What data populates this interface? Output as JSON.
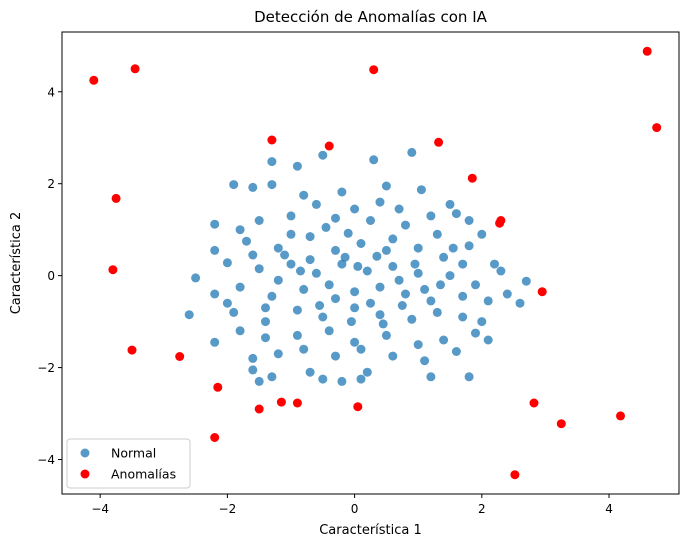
{
  "chart_data": {
    "type": "scatter",
    "title": "Detección de Anomalías con IA",
    "xlabel": "Característica 1",
    "ylabel": "Característica 2",
    "xlim": [
      -4.6,
      5.1
    ],
    "ylim": [
      -4.75,
      5.3
    ],
    "xticks": [
      -4,
      -2,
      0,
      2,
      4
    ],
    "yticks": [
      -4,
      -2,
      0,
      2,
      4
    ],
    "xtick_labels": [
      "−4",
      "−2",
      "0",
      "2",
      "4"
    ],
    "ytick_labels": [
      "−4",
      "−2",
      "0",
      "2",
      "4"
    ],
    "grid": false,
    "legend": {
      "position": "bottom-left"
    },
    "series": [
      {
        "name": "Normal",
        "color": "#1f77b4",
        "opacity": 0.75,
        "points": [
          [
            -1.3,
            2.48
          ],
          [
            -0.5,
            2.62
          ],
          [
            0.3,
            2.52
          ],
          [
            0.9,
            2.68
          ],
          [
            -0.9,
            2.38
          ],
          [
            -1.9,
            1.98
          ],
          [
            -1.6,
            1.92
          ],
          [
            -1.3,
            1.98
          ],
          [
            -0.8,
            1.75
          ],
          [
            -0.2,
            1.82
          ],
          [
            0.5,
            1.95
          ],
          [
            1.05,
            1.87
          ],
          [
            1.5,
            1.55
          ],
          [
            1.6,
            1.35
          ],
          [
            -2.2,
            1.12
          ],
          [
            -1.8,
            1.0
          ],
          [
            -1.5,
            1.2
          ],
          [
            -1.0,
            1.3
          ],
          [
            -0.6,
            1.55
          ],
          [
            0.0,
            1.45
          ],
          [
            0.4,
            1.6
          ],
          [
            0.7,
            1.45
          ],
          [
            1.2,
            1.3
          ],
          [
            1.8,
            1.2
          ],
          [
            2.0,
            0.9
          ],
          [
            -2.2,
            0.55
          ],
          [
            -1.7,
            0.75
          ],
          [
            -1.2,
            0.6
          ],
          [
            -0.7,
            0.85
          ],
          [
            -0.3,
            0.55
          ],
          [
            0.1,
            0.7
          ],
          [
            0.6,
            0.8
          ],
          [
            1.0,
            0.6
          ],
          [
            1.4,
            0.4
          ],
          [
            1.8,
            0.65
          ],
          [
            2.2,
            0.25
          ],
          [
            2.7,
            -0.12
          ],
          [
            -2.5,
            -0.05
          ],
          [
            -2.0,
            0.28
          ],
          [
            -1.5,
            0.15
          ],
          [
            -1.0,
            0.25
          ],
          [
            -0.6,
            0.05
          ],
          [
            -0.2,
            0.25
          ],
          [
            0.2,
            0.1
          ],
          [
            0.6,
            0.2
          ],
          [
            1.0,
            0.05
          ],
          [
            1.5,
            0.0
          ],
          [
            1.9,
            -0.2
          ],
          [
            2.4,
            -0.4
          ],
          [
            -2.2,
            -0.4
          ],
          [
            -1.8,
            -0.25
          ],
          [
            -1.3,
            -0.45
          ],
          [
            -0.8,
            -0.3
          ],
          [
            -0.4,
            -0.2
          ],
          [
            0.0,
            -0.35
          ],
          [
            0.4,
            -0.25
          ],
          [
            0.8,
            -0.4
          ],
          [
            1.2,
            -0.55
          ],
          [
            1.7,
            -0.45
          ],
          [
            2.1,
            -0.55
          ],
          [
            2.6,
            -0.6
          ],
          [
            -2.6,
            -0.85
          ],
          [
            -1.9,
            -0.8
          ],
          [
            -1.4,
            -0.7
          ],
          [
            -0.9,
            -0.75
          ],
          [
            -0.5,
            -0.9
          ],
          [
            0.0,
            -0.7
          ],
          [
            0.4,
            -0.85
          ],
          [
            0.9,
            -0.95
          ],
          [
            1.3,
            -0.8
          ],
          [
            1.7,
            -0.9
          ],
          [
            2.0,
            -1.0
          ],
          [
            -2.2,
            -1.45
          ],
          [
            -1.8,
            -1.2
          ],
          [
            -1.4,
            -1.35
          ],
          [
            -0.9,
            -1.3
          ],
          [
            -0.4,
            -1.2
          ],
          [
            0.0,
            -1.45
          ],
          [
            0.5,
            -1.3
          ],
          [
            1.0,
            -1.5
          ],
          [
            1.4,
            -1.4
          ],
          [
            1.9,
            -1.25
          ],
          [
            2.1,
            -1.4
          ],
          [
            -1.6,
            -1.8
          ],
          [
            -1.2,
            -1.7
          ],
          [
            -0.8,
            -1.6
          ],
          [
            -0.3,
            -1.75
          ],
          [
            0.1,
            -1.6
          ],
          [
            0.6,
            -1.75
          ],
          [
            1.1,
            -1.85
          ],
          [
            1.6,
            -1.65
          ],
          [
            -1.6,
            -2.05
          ],
          [
            -1.3,
            -2.2
          ],
          [
            -0.7,
            -2.1
          ],
          [
            -0.2,
            -2.3
          ],
          [
            0.2,
            -2.1
          ],
          [
            1.2,
            -2.2
          ],
          [
            1.8,
            -2.2
          ],
          [
            -1.5,
            -2.3
          ],
          [
            -0.5,
            -2.25
          ],
          [
            0.1,
            -2.25
          ],
          [
            -1.1,
            0.45
          ],
          [
            -0.1,
            0.92
          ],
          [
            0.35,
            0.42
          ],
          [
            0.8,
            1.1
          ],
          [
            -0.45,
            1.05
          ],
          [
            1.3,
            0.9
          ],
          [
            -1.2,
            -0.1
          ],
          [
            0.25,
            -0.6
          ],
          [
            -0.7,
            0.35
          ],
          [
            1.55,
            0.6
          ],
          [
            0.05,
            0.2
          ],
          [
            -0.3,
            -0.5
          ],
          [
            0.7,
            -0.1
          ],
          [
            -1.0,
            0.9
          ],
          [
            0.5,
            0.55
          ],
          [
            1.1,
            -0.3
          ],
          [
            -1.6,
            0.45
          ],
          [
            0.95,
            0.25
          ],
          [
            -0.55,
            -0.65
          ],
          [
            1.35,
            -0.2
          ],
          [
            -0.15,
            0.4
          ],
          [
            0.45,
            -1.05
          ],
          [
            -0.85,
            0.1
          ],
          [
            0.25,
            1.2
          ],
          [
            -0.3,
            1.25
          ],
          [
            1.7,
            0.25
          ],
          [
            -1.4,
            -1.0
          ],
          [
            0.75,
            -0.65
          ],
          [
            -0.05,
            -1.0
          ],
          [
            -2.0,
            -0.6
          ],
          [
            2.3,
            0.1
          ]
        ]
      },
      {
        "name": "Anomalías",
        "color": "#ff0000",
        "opacity": 1,
        "points": [
          [
            -4.1,
            4.25
          ],
          [
            -3.45,
            4.5
          ],
          [
            0.3,
            4.48
          ],
          [
            4.6,
            4.88
          ],
          [
            4.75,
            3.22
          ],
          [
            -1.3,
            2.95
          ],
          [
            -0.4,
            2.82
          ],
          [
            1.32,
            2.9
          ],
          [
            1.85,
            2.12
          ],
          [
            2.3,
            1.2
          ],
          [
            2.28,
            1.14
          ],
          [
            -3.75,
            1.68
          ],
          [
            -3.8,
            0.13
          ],
          [
            2.95,
            -0.35
          ],
          [
            -3.5,
            -1.62
          ],
          [
            -2.75,
            -1.76
          ],
          [
            -2.15,
            -2.43
          ],
          [
            -1.15,
            -2.75
          ],
          [
            -0.9,
            -2.77
          ],
          [
            0.05,
            -2.85
          ],
          [
            -1.5,
            -2.9
          ],
          [
            2.82,
            -2.77
          ],
          [
            4.18,
            -3.05
          ],
          [
            3.25,
            -3.22
          ],
          [
            -2.2,
            -3.52
          ],
          [
            2.52,
            -4.33
          ]
        ]
      }
    ]
  }
}
